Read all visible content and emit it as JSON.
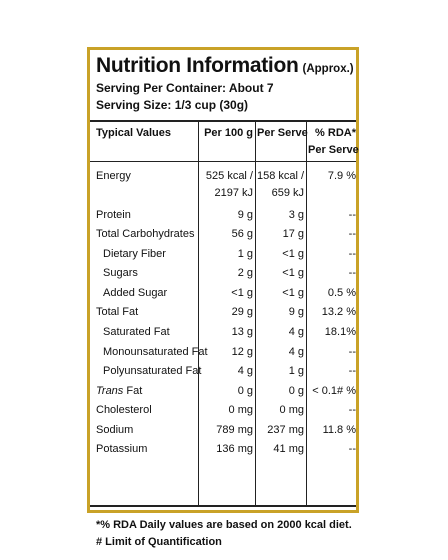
{
  "title": "Nutrition Information",
  "title_note": "(Approx.)",
  "serving_per_container": "Serving Per Container: About 7",
  "serving_size": "Serving Size: 1/3 cup (30g)",
  "headers": {
    "typical": "Typical Values",
    "per100": "Per 100 g",
    "perserve": "Per Serve",
    "rda_line1": "% RDA*",
    "rda_line2": "Per Serve"
  },
  "energy": {
    "label": "Energy",
    "per100_a": "525 kcal /",
    "per100_b": "2197 kJ",
    "perserve_a": "158 kcal /",
    "perserve_b": "659 kJ",
    "rda": "7.9 %"
  },
  "rows": [
    {
      "label": "Protein",
      "per100": "9 g",
      "perserve": "3 g",
      "rda": "--"
    },
    {
      "label": "Total Carbohydrates",
      "per100": "56 g",
      "perserve": "17 g",
      "rda": "--"
    },
    {
      "label": "Dietary Fiber",
      "per100": "1 g",
      "perserve": "<1 g",
      "rda": "--"
    },
    {
      "label": "Sugars",
      "per100": "2 g",
      "perserve": "<1 g",
      "rda": "--"
    },
    {
      "label": "Added Sugar",
      "per100": "<1 g",
      "perserve": "<1 g",
      "rda": "0.5 %"
    },
    {
      "label": "Total Fat",
      "per100": "29 g",
      "perserve": "9 g",
      "rda": "13.2 %"
    },
    {
      "label": "Saturated Fat",
      "per100": "13 g",
      "perserve": "4 g",
      "rda": "18.1%"
    },
    {
      "label": "Monounsaturated Fat",
      "per100": "12 g",
      "perserve": "4 g",
      "rda": "--"
    },
    {
      "label": "Polyunsaturated Fat",
      "per100": "4 g",
      "perserve": "1 g",
      "rda": "--"
    },
    {
      "label_italic": "Trans",
      "label_rest": " Fat",
      "per100": "0 g",
      "perserve": "0 g",
      "rda": "< 0.1# %"
    },
    {
      "label": "Cholesterol",
      "per100": "0 mg",
      "perserve": "0 mg",
      "rda": "--"
    },
    {
      "label": "Sodium",
      "per100": "789 mg",
      "perserve": "237 mg",
      "rda": "11.8 %"
    },
    {
      "label": "Potassium",
      "per100": "136 mg",
      "perserve": "41 mg",
      "rda": "--"
    }
  ],
  "footnote_rda": "*% RDA Daily values are based on 2000 kcal diet.",
  "footnote_loq": "# Limit of Quantification",
  "colors": {
    "border": "#c9a227",
    "text": "#111111"
  }
}
